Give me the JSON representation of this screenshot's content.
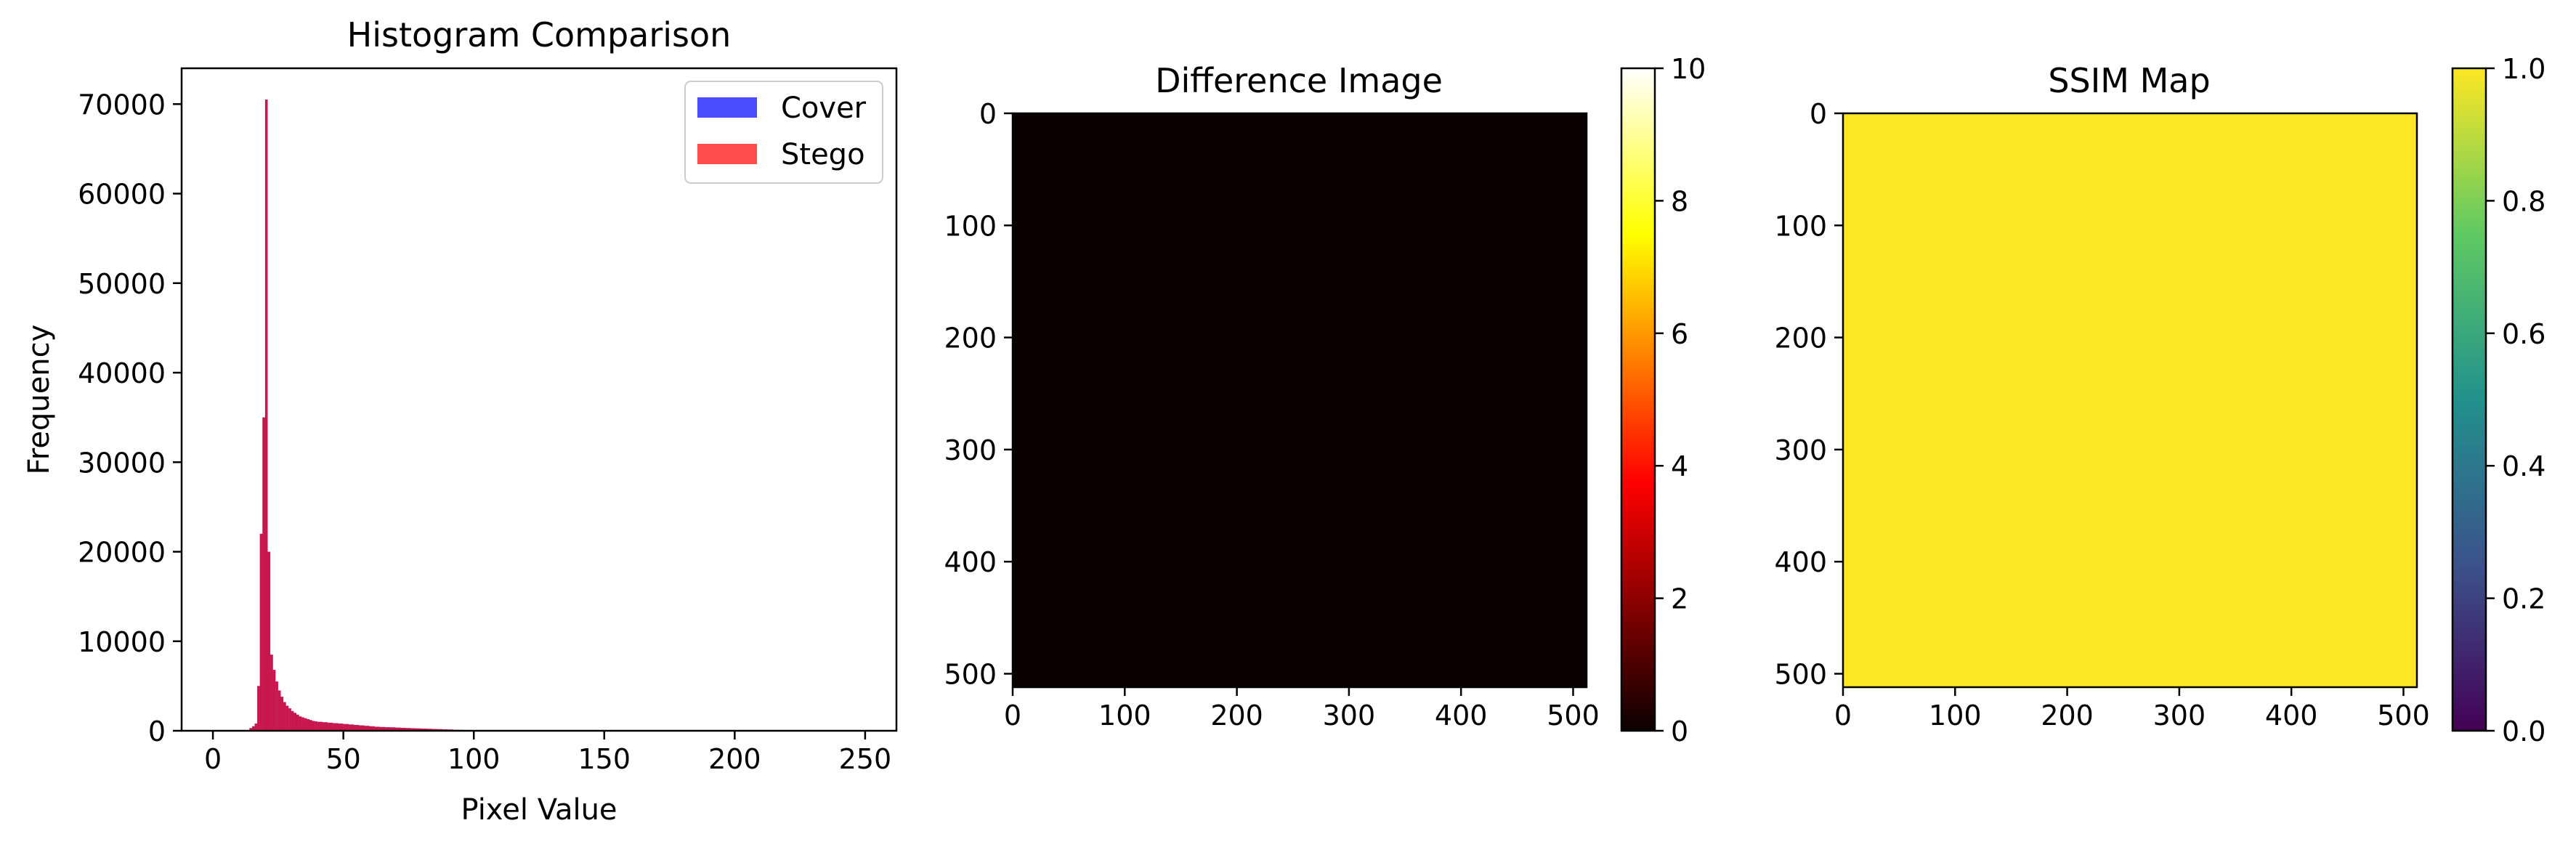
{
  "chart_data": [
    {
      "type": "bar",
      "title": "Histogram Comparison",
      "xlabel": "Pixel Value",
      "ylabel": "Frequency",
      "xlim": [
        -12,
        262
      ],
      "ylim": [
        0,
        74000
      ],
      "x_ticks": [
        0,
        50,
        100,
        150,
        200,
        250
      ],
      "y_ticks": [
        0,
        10000,
        20000,
        30000,
        40000,
        50000,
        60000,
        70000
      ],
      "legend_position": "upper-right",
      "series": [
        {
          "name": "Cover",
          "color": "#0000ff",
          "alpha": 0.7,
          "x": [
            14,
            15,
            16,
            17,
            18,
            19,
            20,
            21,
            22,
            23,
            24,
            25,
            26,
            27,
            28,
            29,
            30,
            31,
            32,
            33,
            34,
            35,
            36,
            37,
            38,
            39,
            40,
            42,
            44,
            46,
            48,
            50,
            52,
            54,
            56,
            58,
            60,
            62,
            64,
            66,
            68,
            70,
            72,
            74,
            76,
            78,
            80,
            82,
            84,
            86,
            88,
            90,
            92,
            94,
            96,
            98,
            100
          ],
          "values": [
            300,
            500,
            800,
            5000,
            22000,
            35000,
            70500,
            20000,
            8500,
            6800,
            5500,
            4500,
            3800,
            3200,
            2800,
            2500,
            2200,
            2000,
            1800,
            1600,
            1500,
            1400,
            1300,
            1200,
            1100,
            1050,
            1000,
            950,
            900,
            850,
            800,
            750,
            700,
            650,
            600,
            550,
            500,
            450,
            420,
            400,
            380,
            350,
            330,
            300,
            280,
            260,
            240,
            220,
            200,
            180,
            160,
            140,
            120,
            100,
            80,
            60,
            40
          ]
        },
        {
          "name": "Stego",
          "color": "#ff0000",
          "alpha": 0.7,
          "x": [
            14,
            15,
            16,
            17,
            18,
            19,
            20,
            21,
            22,
            23,
            24,
            25,
            26,
            27,
            28,
            29,
            30,
            31,
            32,
            33,
            34,
            35,
            36,
            37,
            38,
            39,
            40,
            42,
            44,
            46,
            48,
            50,
            52,
            54,
            56,
            58,
            60,
            62,
            64,
            66,
            68,
            70,
            72,
            74,
            76,
            78,
            80,
            82,
            84,
            86,
            88,
            90,
            92,
            94,
            96,
            98,
            100
          ],
          "values": [
            300,
            500,
            800,
            5000,
            22000,
            35000,
            70500,
            20000,
            8500,
            6800,
            5500,
            4500,
            3800,
            3200,
            2800,
            2500,
            2200,
            2000,
            1800,
            1600,
            1500,
            1400,
            1300,
            1200,
            1100,
            1050,
            1000,
            950,
            900,
            850,
            800,
            750,
            700,
            650,
            600,
            550,
            500,
            450,
            420,
            400,
            380,
            350,
            330,
            300,
            280,
            260,
            240,
            220,
            200,
            180,
            160,
            140,
            120,
            100,
            80,
            60,
            40
          ]
        }
      ]
    },
    {
      "type": "heatmap",
      "title": "Difference Image",
      "colormap": "hot",
      "xlim": [
        0,
        512
      ],
      "ylim": [
        512,
        0
      ],
      "x_ticks": [
        0,
        100,
        200,
        300,
        400,
        500
      ],
      "y_ticks": [
        0,
        100,
        200,
        300,
        400,
        500
      ],
      "value_all_pixels": 0,
      "fill_color": "#0b0000",
      "colorbar": {
        "min": 0,
        "max": 10,
        "ticks": [
          0,
          2,
          4,
          6,
          8,
          10
        ]
      }
    },
    {
      "type": "heatmap",
      "title": "SSIM Map",
      "colormap": "viridis",
      "xlim": [
        0,
        512
      ],
      "ylim": [
        512,
        0
      ],
      "x_ticks": [
        0,
        100,
        200,
        300,
        400,
        500
      ],
      "y_ticks": [
        0,
        100,
        200,
        300,
        400,
        500
      ],
      "value_all_pixels": 1.0,
      "fill_color": "#fde725",
      "colorbar": {
        "min": 0.0,
        "max": 1.0,
        "ticks": [
          "0.0",
          "0.2",
          "0.4",
          "0.6",
          "0.8",
          "1.0"
        ]
      }
    }
  ]
}
